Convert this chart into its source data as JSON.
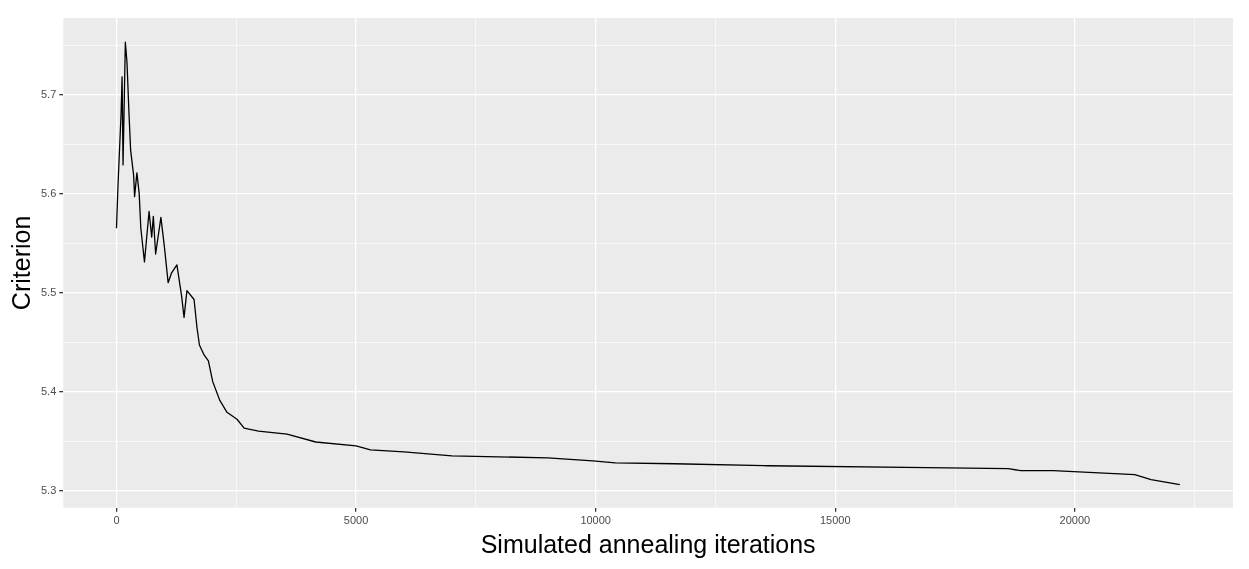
{
  "chart_data": {
    "type": "line",
    "xlabel": "Simulated annealing iterations",
    "ylabel": "Criterion",
    "xlim": [
      -1110,
      23300
    ],
    "ylim": [
      5.2825,
      5.7775
    ],
    "xticks": [
      0,
      {
        "value": 2500,
        "label": null
      },
      5000,
      {
        "value": 7500,
        "label": null
      },
      10000,
      {
        "value": 12500,
        "label": null
      },
      15000,
      {
        "value": 17500,
        "label": null
      },
      20000,
      {
        "value": 22500,
        "label": null
      }
    ],
    "yticks": [
      5.3,
      {
        "value": 5.35,
        "label": null
      },
      5.4,
      {
        "value": 5.45,
        "label": null
      },
      5.5,
      {
        "value": 5.55,
        "label": null
      },
      5.6,
      {
        "value": 5.65,
        "label": null
      },
      5.7,
      {
        "value": 5.75,
        "label": null
      }
    ],
    "grid": true,
    "legend": false,
    "marker": "none",
    "line_style": "solid",
    "series": [
      {
        "color": "#000000",
        "x": [
          0,
          34,
          96,
          117,
          137,
          185,
          220,
          261,
          295,
          357,
          378,
          426,
          474,
          508,
          584,
          680,
          735,
          769,
          817,
          927,
          996,
          1078,
          1150,
          1261,
          1358,
          1410,
          1470,
          1619,
          1679,
          1731,
          1828,
          1918,
          2008,
          2157,
          2306,
          2515,
          2664,
          2963,
          3560,
          4157,
          5000,
          5300,
          6000,
          7000,
          9000,
          9940,
          10410,
          11640,
          13600,
          16910,
          18610,
          18870,
          19550,
          21250,
          21590,
          22190
        ],
        "values": [
          5.565,
          5.611,
          5.681,
          5.718,
          5.629,
          5.753,
          5.732,
          5.681,
          5.644,
          5.619,
          5.597,
          5.621,
          5.6,
          5.565,
          5.531,
          5.582,
          5.556,
          5.577,
          5.539,
          5.576,
          5.548,
          5.51,
          5.52,
          5.528,
          5.497,
          5.475,
          5.502,
          5.493,
          5.465,
          5.447,
          5.437,
          5.431,
          5.41,
          5.391,
          5.379,
          5.372,
          5.363,
          5.36,
          5.357,
          5.349,
          5.345,
          5.341,
          5.339,
          5.335,
          5.333,
          5.33,
          5.328,
          5.327,
          5.325,
          5.323,
          5.322,
          5.32,
          5.32,
          5.316,
          5.311,
          5.306
        ]
      }
    ]
  }
}
